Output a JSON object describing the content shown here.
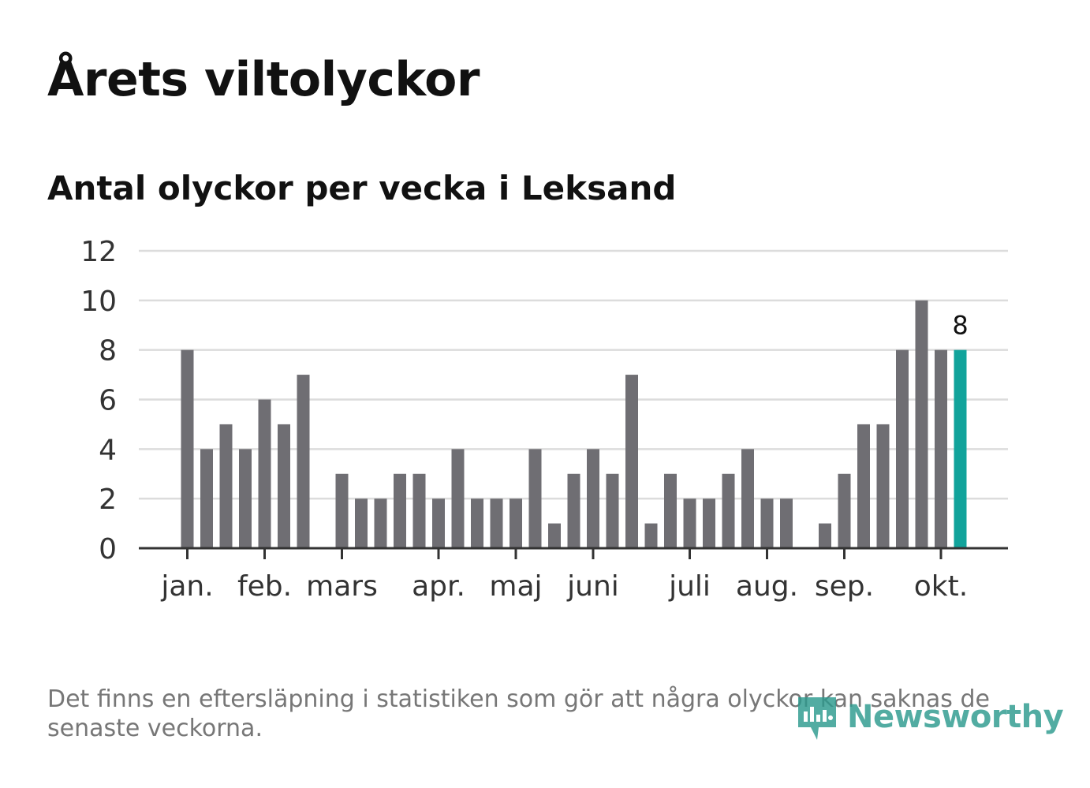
{
  "title": "Årets viltolyckor",
  "subtitle": "Antal olyckor per vecka i Leksand",
  "footnote": "Det finns en eftersläpning i statistiken som gör att några olyckor kan saknas de senaste veckorna.",
  "brand": {
    "name": "Newsworthy",
    "logo_icon": "newsworthy-logo-icon",
    "color": "#2d9a8e"
  },
  "colors": {
    "bar": "#6f6e73",
    "highlight": "#11a39b",
    "grid": "#dcdcdc",
    "axis": "#333333"
  },
  "chart_data": {
    "type": "bar",
    "title": "Antal olyckor per vecka i Leksand",
    "xlabel": "",
    "ylabel": "",
    "ylim": [
      0,
      12
    ],
    "yticks": [
      0,
      2,
      4,
      6,
      8,
      10,
      12
    ],
    "grid": true,
    "weeks": [
      1,
      2,
      3,
      4,
      5,
      6,
      7,
      8,
      9,
      10,
      11,
      12,
      13,
      14,
      15,
      16,
      17,
      18,
      19,
      20,
      21,
      22,
      23,
      24,
      25,
      26,
      27,
      28,
      29,
      30,
      31,
      32,
      33,
      34,
      35,
      36,
      37,
      38,
      39,
      40,
      41
    ],
    "values": [
      8,
      4,
      5,
      4,
      6,
      5,
      7,
      0,
      3,
      2,
      2,
      3,
      3,
      2,
      4,
      2,
      2,
      2,
      4,
      1,
      3,
      4,
      3,
      7,
      1,
      3,
      2,
      2,
      3,
      4,
      2,
      2,
      0,
      1,
      3,
      5,
      5,
      8,
      10,
      8,
      8
    ],
    "highlight_index": 40,
    "highlight_label": "8",
    "month_labels": [
      {
        "label": "jan.",
        "week": 1
      },
      {
        "label": "feb.",
        "week": 5
      },
      {
        "label": "mars",
        "week": 9
      },
      {
        "label": "apr.",
        "week": 14
      },
      {
        "label": "maj",
        "week": 18
      },
      {
        "label": "juni",
        "week": 22
      },
      {
        "label": "juli",
        "week": 27
      },
      {
        "label": "aug.",
        "week": 31
      },
      {
        "label": "sep.",
        "week": 35
      },
      {
        "label": "okt.",
        "week": 40
      }
    ]
  }
}
